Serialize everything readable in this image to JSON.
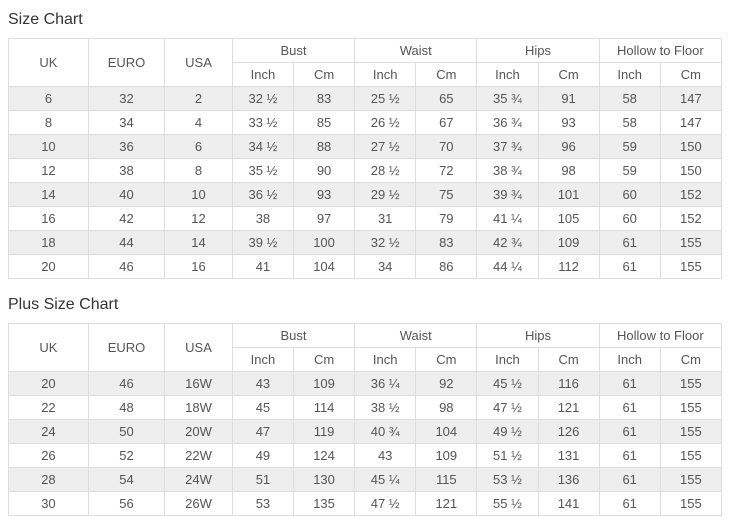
{
  "colors": {
    "stripe_row": "#eeeeee",
    "border": "#dddddd",
    "cell_text": "#555555",
    "title_text": "#333333",
    "background": "#ffffff"
  },
  "tables": [
    {
      "title": "Size Chart",
      "header": {
        "spanned": [
          "UK",
          "EURO",
          "USA"
        ],
        "groups": [
          "Bust",
          "Waist",
          "Hips",
          "Hollow to Floor"
        ],
        "units": [
          "Inch",
          "Cm"
        ]
      },
      "rows": [
        [
          "6",
          "32",
          "2",
          "32 ½",
          "83",
          "25 ½",
          "65",
          "35 ¾",
          "91",
          "58",
          "147"
        ],
        [
          "8",
          "34",
          "4",
          "33 ½",
          "85",
          "26 ½",
          "67",
          "36 ¾",
          "93",
          "58",
          "147"
        ],
        [
          "10",
          "36",
          "6",
          "34 ½",
          "88",
          "27 ½",
          "70",
          "37 ¾",
          "96",
          "59",
          "150"
        ],
        [
          "12",
          "38",
          "8",
          "35 ½",
          "90",
          "28 ½",
          "72",
          "38 ¾",
          "98",
          "59",
          "150"
        ],
        [
          "14",
          "40",
          "10",
          "36 ½",
          "93",
          "29 ½",
          "75",
          "39 ¾",
          "101",
          "60",
          "152"
        ],
        [
          "16",
          "42",
          "12",
          "38",
          "97",
          "31",
          "79",
          "41 ¼",
          "105",
          "60",
          "152"
        ],
        [
          "18",
          "44",
          "14",
          "39 ½",
          "100",
          "32 ½",
          "83",
          "42 ¾",
          "109",
          "61",
          "155"
        ],
        [
          "20",
          "46",
          "16",
          "41",
          "104",
          "34",
          "86",
          "44 ¼",
          "112",
          "61",
          "155"
        ]
      ]
    },
    {
      "title": "Plus Size Chart",
      "header": {
        "spanned": [
          "UK",
          "EURO",
          "USA"
        ],
        "groups": [
          "Bust",
          "Waist",
          "Hips",
          "Hollow to Floor"
        ],
        "units": [
          "Inch",
          "Cm"
        ]
      },
      "rows": [
        [
          "20",
          "46",
          "16W",
          "43",
          "109",
          "36 ¼",
          "92",
          "45 ½",
          "116",
          "61",
          "155"
        ],
        [
          "22",
          "48",
          "18W",
          "45",
          "114",
          "38 ½",
          "98",
          "47 ½",
          "121",
          "61",
          "155"
        ],
        [
          "24",
          "50",
          "20W",
          "47",
          "119",
          "40 ¾",
          "104",
          "49 ½",
          "126",
          "61",
          "155"
        ],
        [
          "26",
          "52",
          "22W",
          "49",
          "124",
          "43",
          "109",
          "51 ½",
          "131",
          "61",
          "155"
        ],
        [
          "28",
          "54",
          "24W",
          "51",
          "130",
          "45 ¼",
          "115",
          "53 ½",
          "136",
          "61",
          "155"
        ],
        [
          "30",
          "56",
          "26W",
          "53",
          "135",
          "47 ½",
          "121",
          "55 ½",
          "141",
          "61",
          "155"
        ]
      ]
    }
  ]
}
